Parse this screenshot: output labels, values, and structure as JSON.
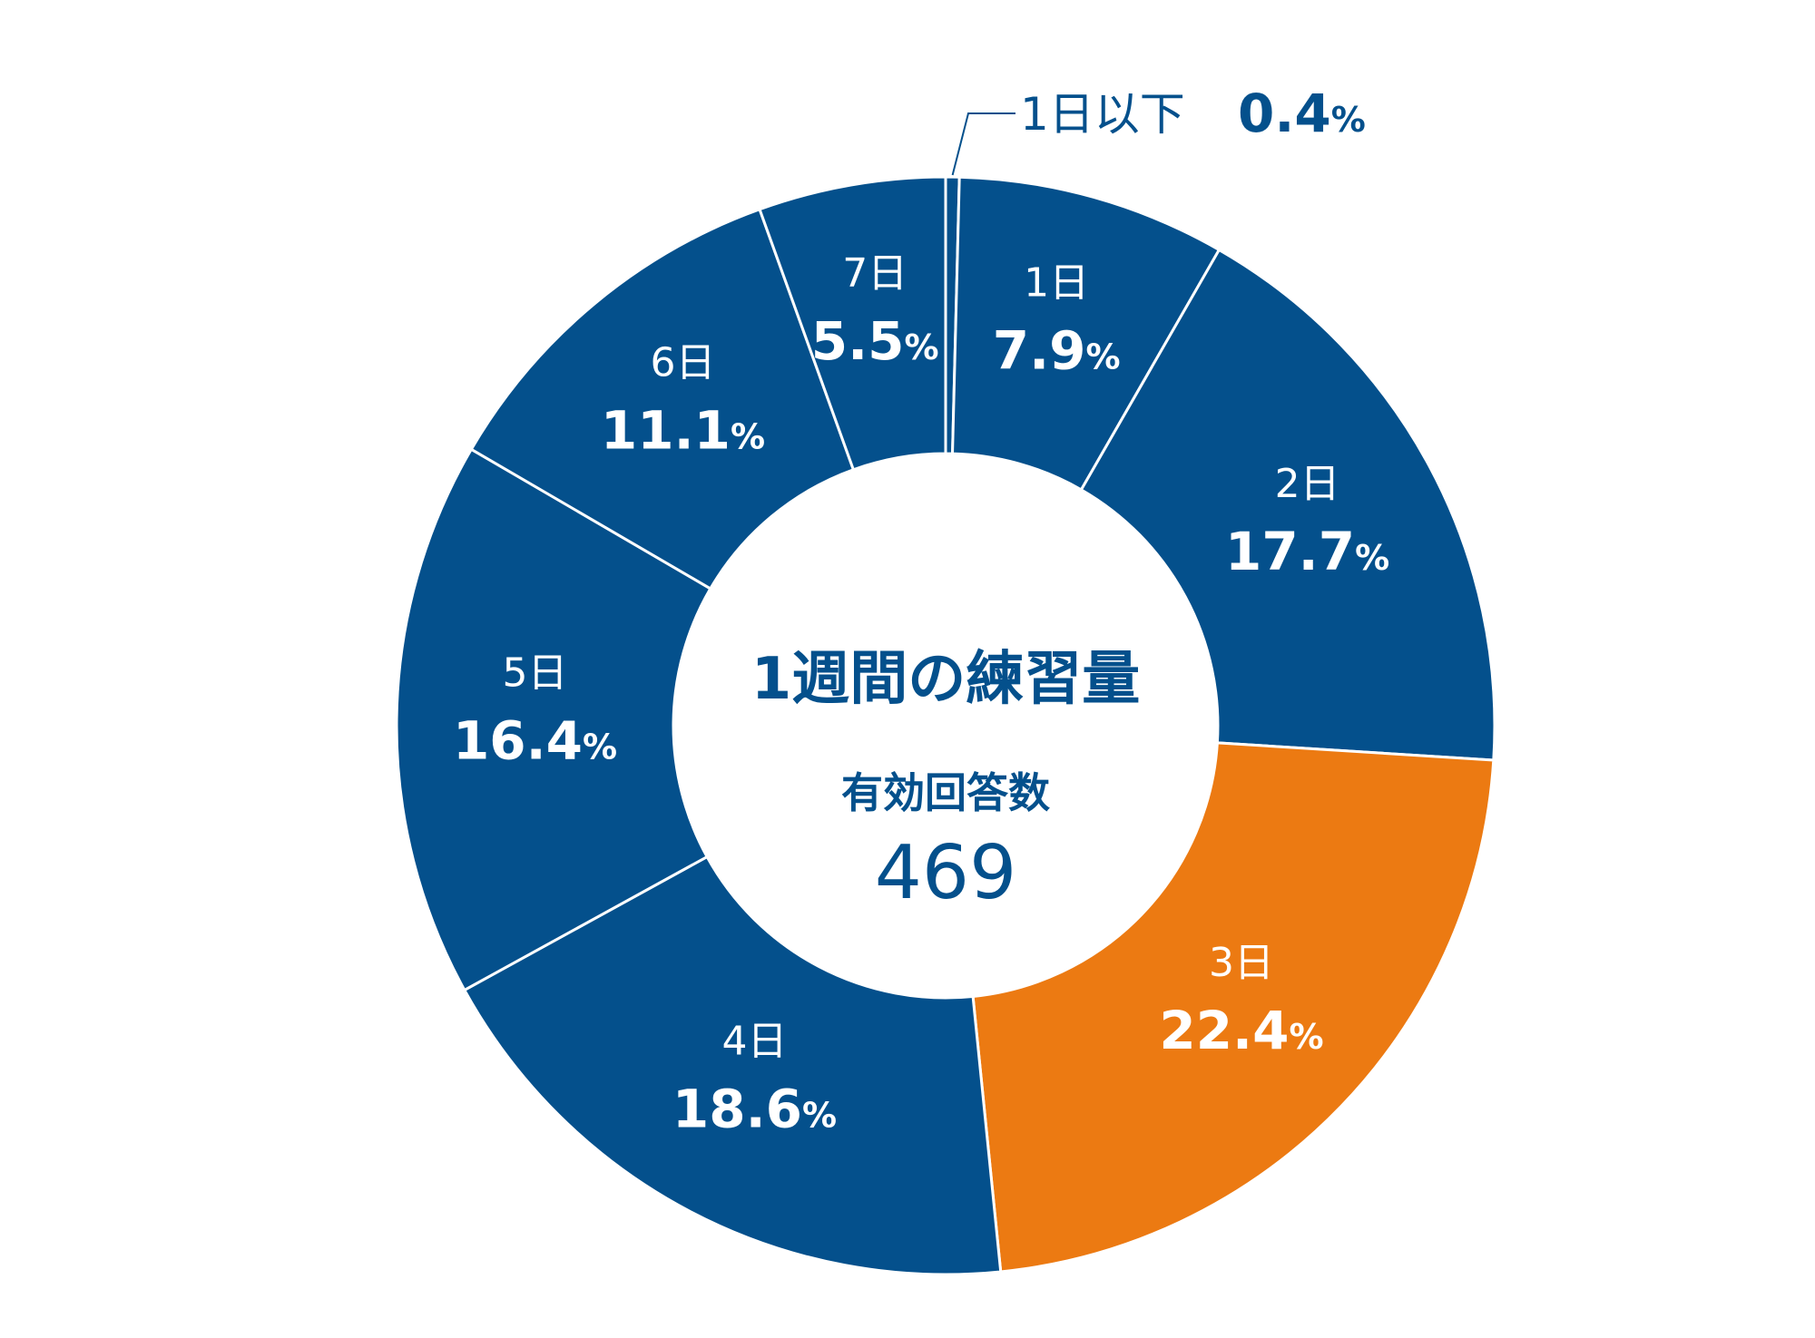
{
  "chart_data": {
    "type": "pie",
    "subtype": "donut",
    "title": "1週間の練習量",
    "total_label": "有効回答数",
    "total_value": "469",
    "start": "top",
    "direction": "clockwise",
    "colors": {
      "default": "#04508c",
      "highlight": "#ec7a12",
      "separator": "#ffffff",
      "center_text": "#04508c",
      "slice_text": "#ffffff"
    },
    "slices": [
      {
        "label": "1日以下",
        "value": 0.4,
        "display": "0.4",
        "highlight": false
      },
      {
        "label": "1日",
        "value": 7.9,
        "display": "7.9",
        "highlight": false
      },
      {
        "label": "2日",
        "value": 17.7,
        "display": "17.7",
        "highlight": false
      },
      {
        "label": "3日",
        "value": 22.4,
        "display": "22.4",
        "highlight": true
      },
      {
        "label": "4日",
        "value": 18.6,
        "display": "18.6",
        "highlight": false
      },
      {
        "label": "5日",
        "value": 16.4,
        "display": "16.4",
        "highlight": false
      },
      {
        "label": "6日",
        "value": 11.1,
        "display": "11.1",
        "highlight": false
      },
      {
        "label": "7日",
        "value": 5.5,
        "display": "5.5",
        "highlight": false
      }
    ],
    "unit": "%"
  }
}
